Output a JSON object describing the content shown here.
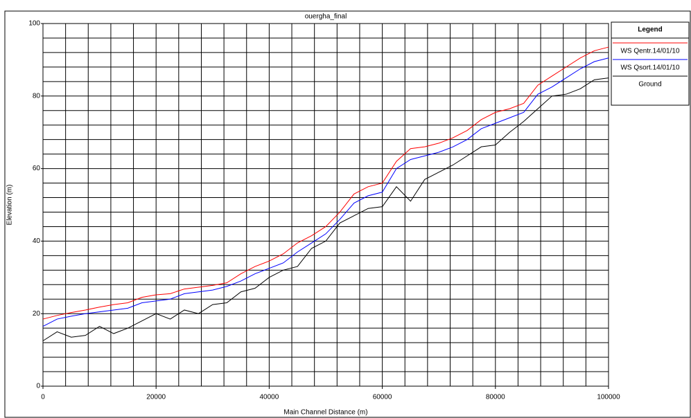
{
  "chart_data": {
    "type": "line",
    "title": "ouergha_final",
    "x_label": "Main Channel Distance (m)",
    "y_label": "Elevation (m)",
    "legend_title": "Legend",
    "legend_position": "right",
    "grid": true,
    "xlim": [
      0,
      100000
    ],
    "xticks": [
      0,
      20000,
      40000,
      60000,
      80000,
      100000
    ],
    "ylim": [
      0,
      100
    ],
    "yticks": [
      0,
      20,
      40,
      60,
      80,
      100
    ],
    "x": [
      0,
      2500,
      5000,
      7500,
      10000,
      12500,
      15000,
      17500,
      20000,
      22500,
      25000,
      27500,
      30000,
      32500,
      35000,
      37500,
      40000,
      42500,
      45000,
      47500,
      50000,
      52500,
      55000,
      57500,
      60000,
      62500,
      65000,
      67500,
      70000,
      72500,
      75000,
      77500,
      80000,
      82500,
      85000,
      87500,
      90000,
      92500,
      95000,
      97500,
      100000
    ],
    "series": [
      {
        "name": "WS  Qentr.14/01/10",
        "color": "#ff0000",
        "values": [
          18.5,
          19.5,
          20.3,
          21,
          21.8,
          22.5,
          23,
          24.5,
          25.2,
          25.5,
          26.8,
          27.3,
          27.8,
          28.5,
          31,
          33,
          34.5,
          36.5,
          39.5,
          41.5,
          44,
          48,
          53,
          55,
          56,
          62,
          65.5,
          66,
          67,
          68.5,
          70.5,
          73.5,
          75.5,
          76.5,
          78,
          83,
          85.5,
          88,
          90.5,
          92.5,
          93.5
        ]
      },
      {
        "name": "WS  Qsort.14/01/10",
        "color": "#0000ff",
        "values": [
          16.5,
          18.5,
          19.3,
          20,
          20.5,
          21,
          21.5,
          23,
          23.5,
          24,
          25.5,
          26,
          26.5,
          27.5,
          29,
          31,
          32.5,
          34,
          37,
          39.5,
          42,
          46,
          50.5,
          52.5,
          53.5,
          60,
          62.5,
          63.5,
          64.5,
          66,
          68,
          71,
          72.5,
          74,
          75.5,
          80.5,
          82.5,
          85,
          87.5,
          89.5,
          90.5
        ]
      },
      {
        "name": "Ground",
        "color": "#000000",
        "values": [
          12.5,
          15,
          13.5,
          14,
          16.5,
          14.5,
          16,
          18,
          20,
          18.5,
          21,
          20,
          22.5,
          23,
          26,
          27,
          30,
          32,
          33,
          38,
          40,
          45,
          47,
          49,
          49.5,
          55,
          51,
          57,
          59,
          61,
          63.5,
          66,
          66.5,
          70,
          73,
          76.5,
          80,
          80.5,
          82,
          84.5,
          85
        ]
      }
    ]
  }
}
